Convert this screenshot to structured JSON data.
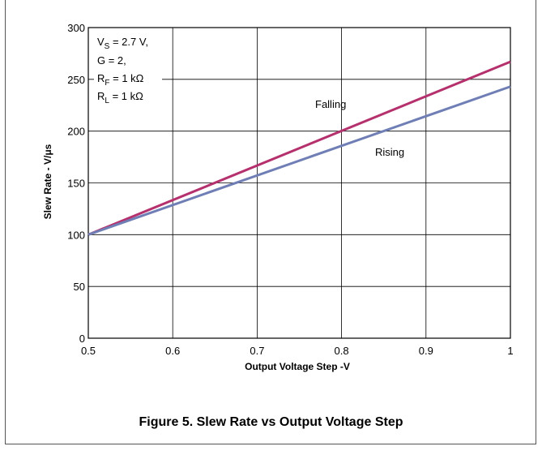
{
  "figure": {
    "caption": "Figure 5. Slew Rate vs Output Voltage Step"
  },
  "chart_data": {
    "type": "line",
    "title": "",
    "xlabel": "Output Voltage Step  -V",
    "ylabel": "Slew Rate - V/μs",
    "xlim": [
      0.5,
      1.0
    ],
    "ylim": [
      0,
      300
    ],
    "x_ticks": [
      "0.5",
      "0.6",
      "0.7",
      "0.8",
      "0.9",
      "1"
    ],
    "y_ticks": [
      "0",
      "50",
      "100",
      "150",
      "200",
      "250",
      "300"
    ],
    "grid": true,
    "series": [
      {
        "name": "Falling",
        "color": "#b5316d",
        "x": [
          0.5,
          1.0
        ],
        "y": [
          100,
          267
        ]
      },
      {
        "name": "Rising",
        "color": "#6f7fb5",
        "x": [
          0.5,
          1.0
        ],
        "y": [
          100,
          243
        ]
      }
    ],
    "conditions": {
      "vs": {
        "label": "V",
        "sub": "S",
        "value": " = 2.7 V,"
      },
      "g": {
        "label": "G = 2,"
      },
      "rf": {
        "label": "R",
        "sub": "F",
        "value": " = 1 kΩ"
      },
      "rl": {
        "label": "R",
        "sub": "L",
        "value": " = 1 kΩ"
      }
    }
  }
}
